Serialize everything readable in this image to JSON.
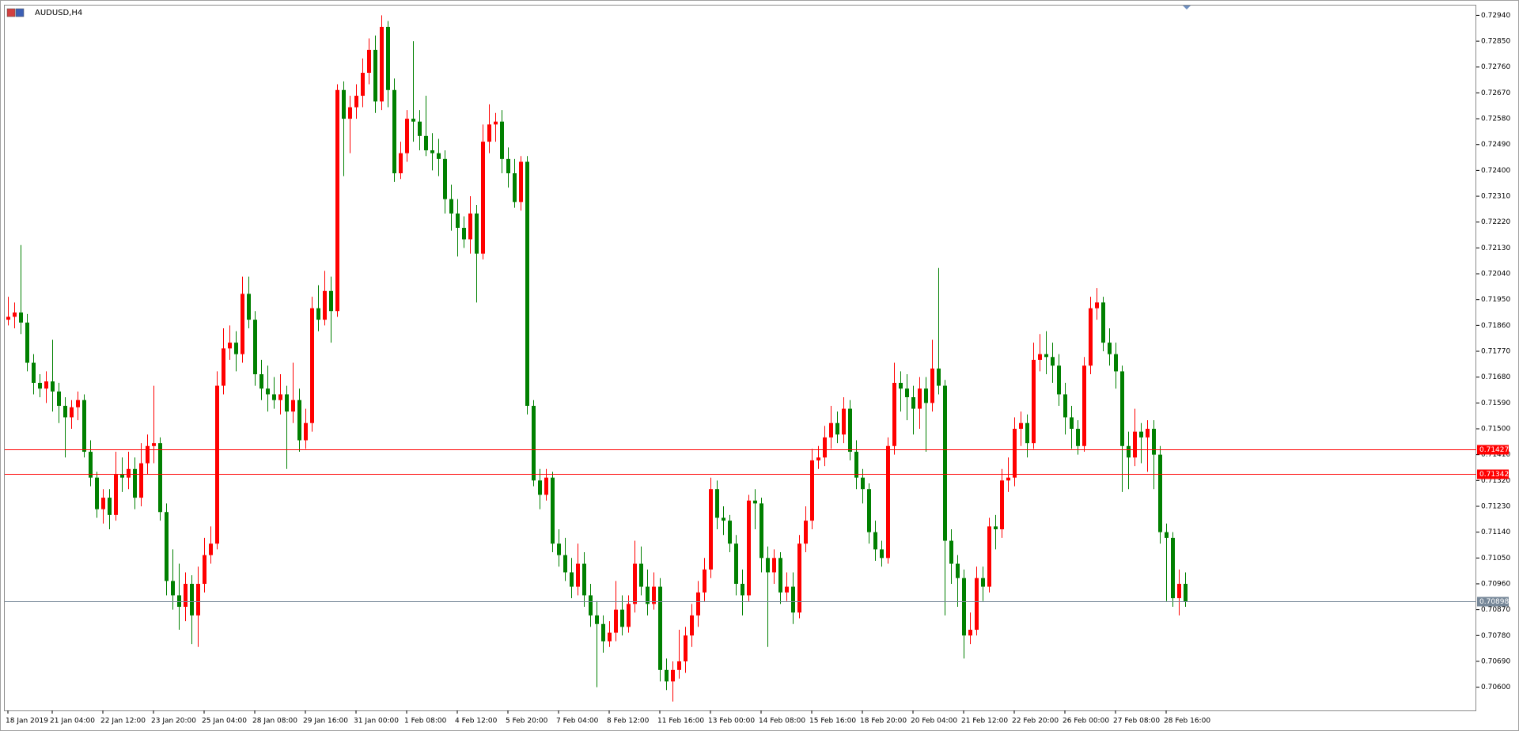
{
  "chart_data": {
    "type": "candlestick",
    "title": "AUDUSD,H4",
    "up_color": "#ff0000",
    "down_color": "#008000",
    "ylim": [
      0.70519,
      0.72977
    ],
    "yticks": [
      {
        "value": 0.7294,
        "label": "0.72940"
      },
      {
        "value": 0.7285,
        "label": "0.72850"
      },
      {
        "value": 0.7276,
        "label": "0.72760"
      },
      {
        "value": 0.7267,
        "label": "0.72670"
      },
      {
        "value": 0.7258,
        "label": "0.72580"
      },
      {
        "value": 0.7249,
        "label": "0.72490"
      },
      {
        "value": 0.724,
        "label": "0.72400"
      },
      {
        "value": 0.7231,
        "label": "0.72310"
      },
      {
        "value": 0.7222,
        "label": "0.72220"
      },
      {
        "value": 0.7213,
        "label": "0.72130"
      },
      {
        "value": 0.7204,
        "label": "0.72040"
      },
      {
        "value": 0.7195,
        "label": "0.71950"
      },
      {
        "value": 0.7186,
        "label": "0.71860"
      },
      {
        "value": 0.7177,
        "label": "0.71770"
      },
      {
        "value": 0.7168,
        "label": "0.71680"
      },
      {
        "value": 0.7159,
        "label": "0.71590"
      },
      {
        "value": 0.715,
        "label": "0.71500"
      },
      {
        "value": 0.7141,
        "label": "0.71410"
      },
      {
        "value": 0.7132,
        "label": "0.71320"
      },
      {
        "value": 0.7123,
        "label": "0.71230"
      },
      {
        "value": 0.7114,
        "label": "0.71140"
      },
      {
        "value": 0.7105,
        "label": "0.71050"
      },
      {
        "value": 0.7096,
        "label": "0.70960"
      },
      {
        "value": 0.7087,
        "label": "0.70870"
      },
      {
        "value": 0.7078,
        "label": "0.70780"
      },
      {
        "value": 0.7069,
        "label": "0.70690"
      },
      {
        "value": 0.706,
        "label": "0.70600"
      }
    ],
    "xticks": [
      {
        "value": 0,
        "label": "18 Jan 2019"
      },
      {
        "value": 7,
        "label": "21 Jan 04:00"
      },
      {
        "value": 15,
        "label": "22 Jan 12:00"
      },
      {
        "value": 23,
        "label": "23 Jan 20:00"
      },
      {
        "value": 31,
        "label": "25 Jan 04:00"
      },
      {
        "value": 39,
        "label": "28 Jan 08:00"
      },
      {
        "value": 47,
        "label": "29 Jan 16:00"
      },
      {
        "value": 55,
        "label": "31 Jan 00:00"
      },
      {
        "value": 63,
        "label": "1 Feb 08:00"
      },
      {
        "value": 71,
        "label": "4 Feb 12:00"
      },
      {
        "value": 79,
        "label": "5 Feb 20:00"
      },
      {
        "value": 87,
        "label": "7 Feb 04:00"
      },
      {
        "value": 95,
        "label": "8 Feb 12:00"
      },
      {
        "value": 103,
        "label": "11 Feb 16:00"
      },
      {
        "value": 111,
        "label": "13 Feb 00:00"
      },
      {
        "value": 119,
        "label": "14 Feb 08:00"
      },
      {
        "value": 127,
        "label": "15 Feb 16:00"
      },
      {
        "value": 135,
        "label": "18 Feb 20:00"
      },
      {
        "value": 143,
        "label": "20 Feb 04:00"
      },
      {
        "value": 151,
        "label": "21 Feb 12:00"
      },
      {
        "value": 159,
        "label": "22 Feb 20:00"
      },
      {
        "value": 167,
        "label": "26 Feb 00:00"
      },
      {
        "value": 175,
        "label": "27 Feb 08:00"
      },
      {
        "value": 183,
        "label": "28 Feb 16:00"
      }
    ],
    "levels": [
      {
        "value": 0.71427,
        "label": "0.71427",
        "color": "#ff0000"
      },
      {
        "value": 0.71342,
        "label": "0.71342",
        "color": "#ff0000"
      },
      {
        "value": 0.70898,
        "label": "0.70898",
        "color": "#778899"
      }
    ],
    "ohlc": [
      [
        0.7188,
        0.7196,
        0.7186,
        0.7189
      ],
      [
        0.7189,
        0.7194,
        0.7185,
        0.71905
      ],
      [
        0.71905,
        0.7214,
        0.7183,
        0.7187
      ],
      [
        0.7187,
        0.719,
        0.717,
        0.7173
      ],
      [
        0.7173,
        0.7176,
        0.7162,
        0.7166
      ],
      [
        0.7166,
        0.7169,
        0.7161,
        0.7164
      ],
      [
        0.7164,
        0.717,
        0.7159,
        0.71665
      ],
      [
        0.71665,
        0.7181,
        0.7156,
        0.7163
      ],
      [
        0.7163,
        0.7166,
        0.7152,
        0.7158
      ],
      [
        0.7158,
        0.7161,
        0.714,
        0.7154
      ],
      [
        0.7154,
        0.716,
        0.715,
        0.71575
      ],
      [
        0.71575,
        0.7163,
        0.7153,
        0.716
      ],
      [
        0.716,
        0.7162,
        0.714,
        0.7142
      ],
      [
        0.7142,
        0.7146,
        0.713,
        0.7133
      ],
      [
        0.7133,
        0.7135,
        0.7119,
        0.7122
      ],
      [
        0.7122,
        0.7129,
        0.7117,
        0.7126
      ],
      [
        0.7126,
        0.7129,
        0.7115,
        0.712
      ],
      [
        0.712,
        0.7142,
        0.7118,
        0.7134
      ],
      [
        0.7134,
        0.714,
        0.7128,
        0.7133
      ],
      [
        0.7133,
        0.7142,
        0.7129,
        0.7136
      ],
      [
        0.7136,
        0.714,
        0.7122,
        0.7126
      ],
      [
        0.7126,
        0.7145,
        0.7123,
        0.7138
      ],
      [
        0.7138,
        0.7148,
        0.7134,
        0.7144
      ],
      [
        0.7144,
        0.7165,
        0.7138,
        0.7145
      ],
      [
        0.7145,
        0.7147,
        0.7118,
        0.7121
      ],
      [
        0.7121,
        0.7124,
        0.7092,
        0.7097
      ],
      [
        0.7097,
        0.7108,
        0.7087,
        0.7092
      ],
      [
        0.7092,
        0.7103,
        0.708,
        0.7088
      ],
      [
        0.7088,
        0.71,
        0.7083,
        0.7096
      ],
      [
        0.7096,
        0.7099,
        0.7075,
        0.7085
      ],
      [
        0.7085,
        0.7102,
        0.7074,
        0.7096
      ],
      [
        0.7096,
        0.7112,
        0.7093,
        0.7106
      ],
      [
        0.7106,
        0.7116,
        0.7103,
        0.711
      ],
      [
        0.711,
        0.717,
        0.7108,
        0.7165
      ],
      [
        0.7165,
        0.7185,
        0.7162,
        0.7178
      ],
      [
        0.7178,
        0.7186,
        0.7174,
        0.718
      ],
      [
        0.718,
        0.7184,
        0.717,
        0.7176
      ],
      [
        0.7176,
        0.7203,
        0.7173,
        0.7197
      ],
      [
        0.7197,
        0.7203,
        0.7185,
        0.7188
      ],
      [
        0.7188,
        0.7191,
        0.7165,
        0.7169
      ],
      [
        0.7169,
        0.7174,
        0.716,
        0.7164
      ],
      [
        0.7164,
        0.7172,
        0.7156,
        0.7162
      ],
      [
        0.7162,
        0.7168,
        0.7157,
        0.716
      ],
      [
        0.716,
        0.7169,
        0.7155,
        0.7162
      ],
      [
        0.7162,
        0.7165,
        0.7136,
        0.7156
      ],
      [
        0.7156,
        0.7173,
        0.7152,
        0.716
      ],
      [
        0.716,
        0.7164,
        0.7142,
        0.7146
      ],
      [
        0.7146,
        0.7157,
        0.7143,
        0.7152
      ],
      [
        0.7152,
        0.7196,
        0.7149,
        0.7192
      ],
      [
        0.7192,
        0.72,
        0.7184,
        0.7188
      ],
      [
        0.7188,
        0.7205,
        0.7186,
        0.7198
      ],
      [
        0.7198,
        0.7203,
        0.718,
        0.7191
      ],
      [
        0.7191,
        0.727,
        0.7189,
        0.7268
      ],
      [
        0.7268,
        0.7271,
        0.7238,
        0.7258
      ],
      [
        0.7258,
        0.7266,
        0.7246,
        0.7262
      ],
      [
        0.7262,
        0.727,
        0.7258,
        0.7266
      ],
      [
        0.7266,
        0.7279,
        0.7262,
        0.7274
      ],
      [
        0.7274,
        0.7286,
        0.727,
        0.7282
      ],
      [
        0.7282,
        0.7287,
        0.726,
        0.7264
      ],
      [
        0.7264,
        0.7294,
        0.7261,
        0.729
      ],
      [
        0.729,
        0.7292,
        0.7262,
        0.7268
      ],
      [
        0.7268,
        0.7272,
        0.7236,
        0.7239
      ],
      [
        0.7239,
        0.725,
        0.7237,
        0.7246
      ],
      [
        0.7246,
        0.7261,
        0.7243,
        0.7258
      ],
      [
        0.7258,
        0.7285,
        0.725,
        0.7257
      ],
      [
        0.7257,
        0.7261,
        0.7247,
        0.7252
      ],
      [
        0.7252,
        0.7266,
        0.7245,
        0.7247
      ],
      [
        0.7247,
        0.7253,
        0.724,
        0.7246
      ],
      [
        0.7246,
        0.7251,
        0.7238,
        0.7244
      ],
      [
        0.7244,
        0.7247,
        0.7225,
        0.723
      ],
      [
        0.723,
        0.7235,
        0.7219,
        0.7225
      ],
      [
        0.7225,
        0.723,
        0.721,
        0.722
      ],
      [
        0.722,
        0.7224,
        0.7213,
        0.7216
      ],
      [
        0.7216,
        0.7231,
        0.7211,
        0.7225
      ],
      [
        0.7225,
        0.7228,
        0.7194,
        0.7211
      ],
      [
        0.7211,
        0.7256,
        0.7209,
        0.725
      ],
      [
        0.725,
        0.7263,
        0.7246,
        0.7256
      ],
      [
        0.7256,
        0.726,
        0.725,
        0.7257
      ],
      [
        0.7257,
        0.7261,
        0.7239,
        0.7244
      ],
      [
        0.7244,
        0.7248,
        0.7234,
        0.7239
      ],
      [
        0.7239,
        0.7244,
        0.7227,
        0.7229
      ],
      [
        0.7229,
        0.7245,
        0.7226,
        0.7243
      ],
      [
        0.7243,
        0.7245,
        0.7155,
        0.7158
      ],
      [
        0.7158,
        0.716,
        0.713,
        0.7132
      ],
      [
        0.7132,
        0.7136,
        0.7122,
        0.7127
      ],
      [
        0.7127,
        0.7136,
        0.7125,
        0.7133
      ],
      [
        0.7133,
        0.7135,
        0.7107,
        0.711
      ],
      [
        0.711,
        0.7115,
        0.7102,
        0.7106
      ],
      [
        0.7106,
        0.7112,
        0.7097,
        0.71
      ],
      [
        0.71,
        0.7105,
        0.7091,
        0.7095
      ],
      [
        0.7095,
        0.711,
        0.7092,
        0.7103
      ],
      [
        0.7103,
        0.7107,
        0.7088,
        0.7092
      ],
      [
        0.7092,
        0.7096,
        0.7081,
        0.7085
      ],
      [
        0.7085,
        0.709,
        0.706,
        0.7082
      ],
      [
        0.7082,
        0.7085,
        0.7072,
        0.7076
      ],
      [
        0.7076,
        0.7083,
        0.7074,
        0.7079
      ],
      [
        0.7079,
        0.7097,
        0.7076,
        0.7087
      ],
      [
        0.7087,
        0.7092,
        0.7078,
        0.7081
      ],
      [
        0.7081,
        0.7092,
        0.7079,
        0.7089
      ],
      [
        0.7089,
        0.7111,
        0.7086,
        0.7103
      ],
      [
        0.7103,
        0.7109,
        0.7092,
        0.7095
      ],
      [
        0.7095,
        0.7101,
        0.7085,
        0.7089
      ],
      [
        0.7089,
        0.71,
        0.7087,
        0.7095
      ],
      [
        0.7095,
        0.7098,
        0.7062,
        0.7066
      ],
      [
        0.7066,
        0.707,
        0.7059,
        0.7062
      ],
      [
        0.7062,
        0.7069,
        0.7055,
        0.7066
      ],
      [
        0.7066,
        0.708,
        0.7063,
        0.7069
      ],
      [
        0.7069,
        0.7081,
        0.7065,
        0.7078
      ],
      [
        0.7078,
        0.7089,
        0.7074,
        0.7085
      ],
      [
        0.7085,
        0.7097,
        0.7081,
        0.7093
      ],
      [
        0.7093,
        0.7105,
        0.709,
        0.7101
      ],
      [
        0.7101,
        0.7133,
        0.7098,
        0.7129
      ],
      [
        0.7129,
        0.7132,
        0.7115,
        0.7119
      ],
      [
        0.7119,
        0.7123,
        0.7113,
        0.7118
      ],
      [
        0.7118,
        0.712,
        0.7107,
        0.711
      ],
      [
        0.711,
        0.7113,
        0.7092,
        0.7096
      ],
      [
        0.7096,
        0.7101,
        0.7085,
        0.7092
      ],
      [
        0.7092,
        0.7127,
        0.709,
        0.7125
      ],
      [
        0.7125,
        0.7129,
        0.7115,
        0.7124
      ],
      [
        0.7124,
        0.7126,
        0.71,
        0.7105
      ],
      [
        0.7105,
        0.7109,
        0.7074,
        0.71
      ],
      [
        0.71,
        0.7108,
        0.7096,
        0.7105
      ],
      [
        0.7105,
        0.7107,
        0.7089,
        0.7093
      ],
      [
        0.7093,
        0.71,
        0.709,
        0.7095
      ],
      [
        0.7095,
        0.71,
        0.7082,
        0.7086
      ],
      [
        0.7086,
        0.7113,
        0.7084,
        0.711
      ],
      [
        0.711,
        0.7123,
        0.7107,
        0.7118
      ],
      [
        0.7118,
        0.7143,
        0.7115,
        0.7139
      ],
      [
        0.7139,
        0.7144,
        0.7136,
        0.714
      ],
      [
        0.714,
        0.7151,
        0.7137,
        0.7147
      ],
      [
        0.7147,
        0.7158,
        0.7143,
        0.7152
      ],
      [
        0.7152,
        0.7156,
        0.7145,
        0.7148
      ],
      [
        0.7148,
        0.7161,
        0.7145,
        0.7157
      ],
      [
        0.7157,
        0.716,
        0.7139,
        0.7142
      ],
      [
        0.7142,
        0.7146,
        0.7129,
        0.7133
      ],
      [
        0.7133,
        0.7136,
        0.7124,
        0.7129
      ],
      [
        0.7129,
        0.7131,
        0.711,
        0.7114
      ],
      [
        0.7114,
        0.7118,
        0.7104,
        0.7108
      ],
      [
        0.7108,
        0.7111,
        0.7102,
        0.7105
      ],
      [
        0.7105,
        0.7147,
        0.7103,
        0.7144
      ],
      [
        0.7144,
        0.7173,
        0.7141,
        0.7166
      ],
      [
        0.7166,
        0.717,
        0.7156,
        0.7164
      ],
      [
        0.7164,
        0.7169,
        0.7153,
        0.7161
      ],
      [
        0.7161,
        0.7165,
        0.7148,
        0.7157
      ],
      [
        0.7157,
        0.7168,
        0.715,
        0.7164
      ],
      [
        0.7164,
        0.7168,
        0.7142,
        0.7159
      ],
      [
        0.7159,
        0.7181,
        0.7156,
        0.7171
      ],
      [
        0.7171,
        0.7206,
        0.7162,
        0.7165
      ],
      [
        0.7165,
        0.7167,
        0.7085,
        0.7111
      ],
      [
        0.7111,
        0.7115,
        0.7096,
        0.7103
      ],
      [
        0.7103,
        0.7106,
        0.7088,
        0.7098
      ],
      [
        0.7098,
        0.7101,
        0.707,
        0.7078
      ],
      [
        0.7078,
        0.7086,
        0.7075,
        0.708
      ],
      [
        0.708,
        0.7102,
        0.7078,
        0.7098
      ],
      [
        0.7098,
        0.7102,
        0.709,
        0.7095
      ],
      [
        0.7095,
        0.7119,
        0.7093,
        0.7116
      ],
      [
        0.7116,
        0.712,
        0.7108,
        0.7115
      ],
      [
        0.7115,
        0.7136,
        0.7112,
        0.7132
      ],
      [
        0.7132,
        0.714,
        0.7128,
        0.7133
      ],
      [
        0.7133,
        0.7154,
        0.713,
        0.715
      ],
      [
        0.715,
        0.7156,
        0.7144,
        0.7152
      ],
      [
        0.7152,
        0.7155,
        0.714,
        0.7145
      ],
      [
        0.7145,
        0.718,
        0.7143,
        0.7174
      ],
      [
        0.7174,
        0.7183,
        0.717,
        0.7176
      ],
      [
        0.7176,
        0.7184,
        0.7169,
        0.7175
      ],
      [
        0.7175,
        0.718,
        0.7166,
        0.7172
      ],
      [
        0.7172,
        0.7176,
        0.7158,
        0.7162
      ],
      [
        0.7162,
        0.7166,
        0.7148,
        0.7154
      ],
      [
        0.7154,
        0.7158,
        0.7143,
        0.715
      ],
      [
        0.715,
        0.7153,
        0.7141,
        0.7144
      ],
      [
        0.7144,
        0.7175,
        0.7142,
        0.7172
      ],
      [
        0.7172,
        0.7196,
        0.7169,
        0.7192
      ],
      [
        0.7192,
        0.7199,
        0.7188,
        0.7194
      ],
      [
        0.7194,
        0.7196,
        0.7177,
        0.718
      ],
      [
        0.718,
        0.7185,
        0.7172,
        0.7176
      ],
      [
        0.7176,
        0.718,
        0.7164,
        0.717
      ],
      [
        0.717,
        0.7172,
        0.7128,
        0.7144
      ],
      [
        0.7144,
        0.7149,
        0.7129,
        0.714
      ],
      [
        0.714,
        0.7157,
        0.7137,
        0.7149
      ],
      [
        0.7149,
        0.7152,
        0.7138,
        0.7147
      ],
      [
        0.7147,
        0.7153,
        0.7135,
        0.715
      ],
      [
        0.715,
        0.7153,
        0.7129,
        0.7141
      ],
      [
        0.7141,
        0.7144,
        0.711,
        0.7114
      ],
      [
        0.7114,
        0.7117,
        0.709,
        0.7112
      ],
      [
        0.7112,
        0.7114,
        0.7088,
        0.7091
      ],
      [
        0.7091,
        0.7101,
        0.7085,
        0.7096
      ],
      [
        0.7096,
        0.71,
        0.7088,
        0.70898
      ]
    ]
  }
}
